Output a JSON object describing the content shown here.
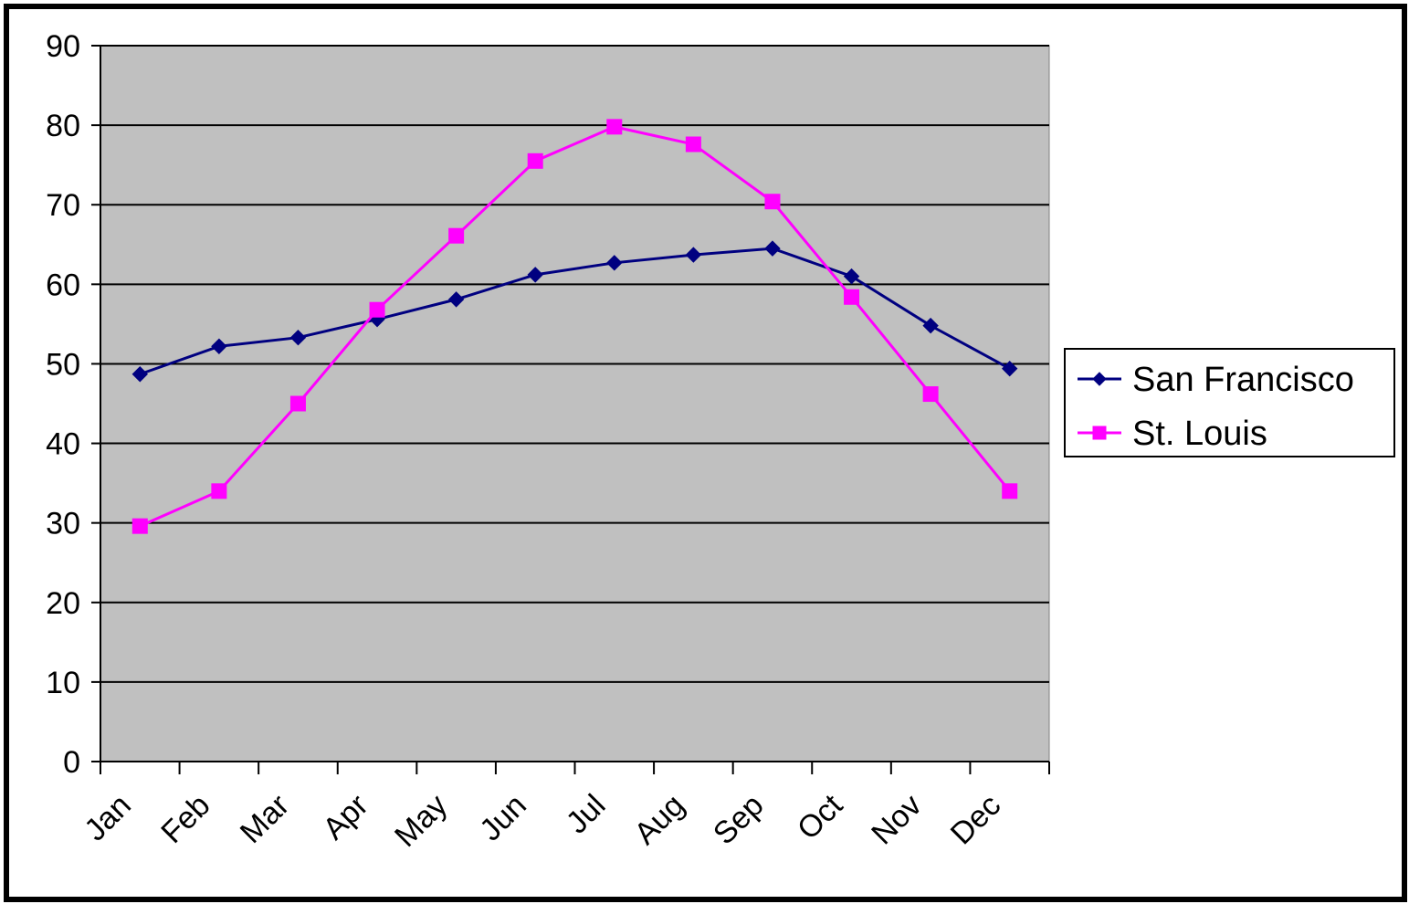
{
  "chart_data": {
    "type": "line",
    "title": "",
    "xlabel": "",
    "ylabel": "",
    "categories": [
      "Jan",
      "Feb",
      "Mar",
      "Apr",
      "May",
      "Jun",
      "Jul",
      "Aug",
      "Sep",
      "Oct",
      "Nov",
      "Dec"
    ],
    "yticks": [
      "0",
      "10",
      "20",
      "30",
      "40",
      "50",
      "60",
      "70",
      "80",
      "90"
    ],
    "ylim": [
      0,
      90
    ],
    "grid": true,
    "legend_position": "right",
    "plot_background": "#c0c0c0",
    "series": [
      {
        "name": "San Francisco",
        "color": "#000080",
        "marker": "diamond",
        "values": [
          48.7,
          52.2,
          53.3,
          55.6,
          58.1,
          61.2,
          62.7,
          63.7,
          64.5,
          61.0,
          54.8,
          49.4
        ]
      },
      {
        "name": "St. Louis",
        "color": "#ff00ff",
        "marker": "square",
        "values": [
          29.6,
          34.0,
          45.0,
          56.8,
          66.1,
          75.5,
          79.8,
          77.6,
          70.4,
          58.4,
          46.2,
          34.0
        ]
      }
    ]
  }
}
